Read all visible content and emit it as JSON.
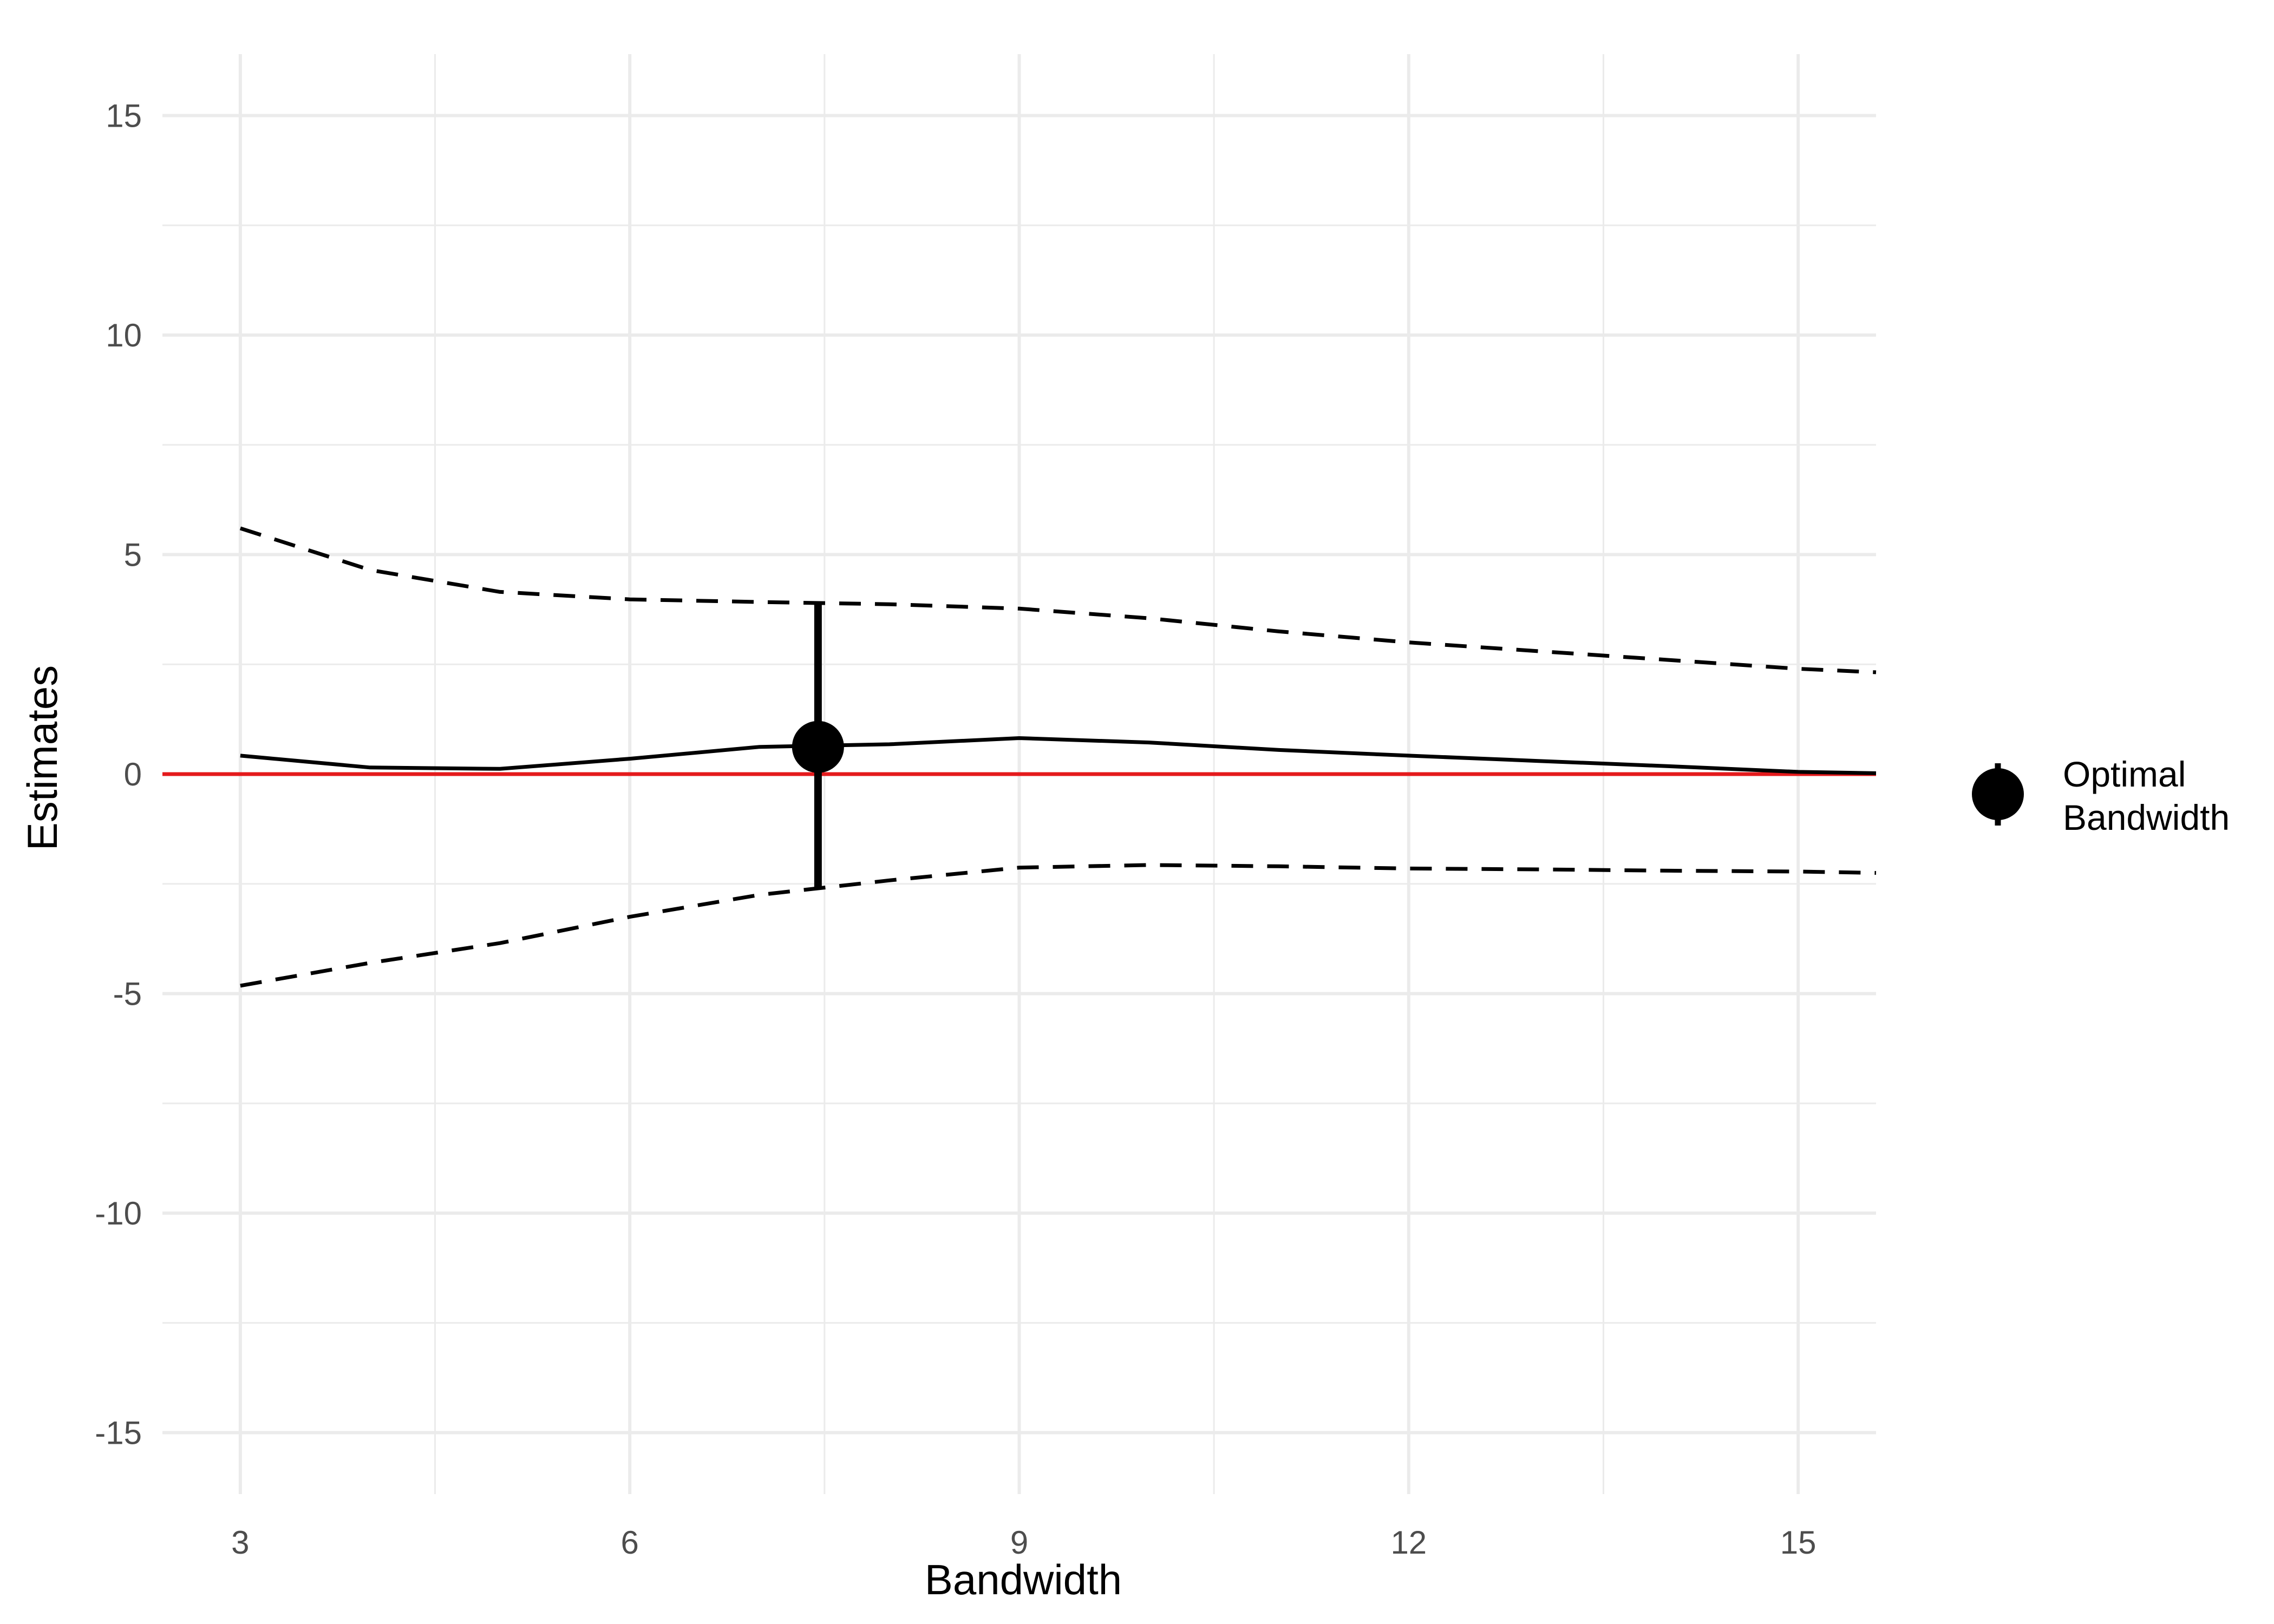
{
  "chart_data": {
    "type": "line",
    "title": "",
    "xlabel": "Bandwidth",
    "ylabel": "Estimates",
    "xlim": [
      2.4,
      15.6
    ],
    "ylim": [
      -16.4,
      16.4
    ],
    "x_ticks": [
      3,
      6,
      9,
      12,
      15
    ],
    "y_ticks": [
      -15,
      -10,
      -5,
      0,
      5,
      10,
      15
    ],
    "x_tick_labels": [
      "3",
      "6",
      "9",
      "12",
      "15"
    ],
    "y_tick_labels": [
      "-15",
      "-10",
      "-5",
      "0",
      "5",
      "10",
      "15"
    ],
    "grid": true,
    "reference_line": {
      "y": 0,
      "color": "#e41a1c"
    },
    "series": [
      {
        "role": "estimate",
        "style": "solid",
        "color": "#000000",
        "x": [
          3,
          4,
          5,
          6,
          7,
          8,
          9,
          10,
          11,
          12,
          13,
          14,
          15,
          15.6
        ],
        "y": [
          0.42,
          0.15,
          0.12,
          0.35,
          0.62,
          0.68,
          0.82,
          0.72,
          0.55,
          0.42,
          0.3,
          0.18,
          0.05,
          0.02
        ]
      },
      {
        "role": "upper-ci",
        "style": "dashed",
        "color": "#000000",
        "x": [
          3,
          4,
          5,
          6,
          7,
          8,
          9,
          10,
          11,
          12,
          13,
          14,
          15,
          15.6
        ],
        "y": [
          5.6,
          4.65,
          4.15,
          3.98,
          3.92,
          3.87,
          3.77,
          3.55,
          3.25,
          3.0,
          2.8,
          2.6,
          2.4,
          2.32
        ]
      },
      {
        "role": "lower-ci",
        "style": "dashed",
        "color": "#000000",
        "x": [
          3,
          4,
          5,
          6,
          7,
          8,
          9,
          10,
          11,
          12,
          13,
          14,
          15,
          15.6
        ],
        "y": [
          -4.82,
          -4.3,
          -3.85,
          -3.25,
          -2.75,
          -2.42,
          -2.13,
          -2.07,
          -2.1,
          -2.15,
          -2.17,
          -2.2,
          -2.22,
          -2.25
        ]
      }
    ],
    "optimal_point": {
      "x": 7.45,
      "y": 0.62,
      "lower": -2.63,
      "upper": 3.88
    },
    "legend": {
      "position": "right",
      "label_lines": [
        "Optimal",
        "Bandwidth"
      ]
    }
  }
}
